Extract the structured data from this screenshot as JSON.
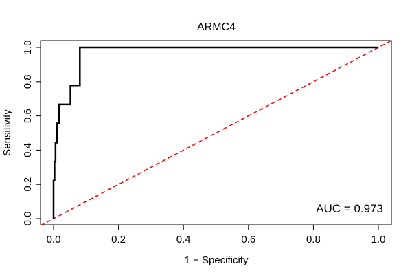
{
  "chart_data": {
    "type": "line",
    "title": "ARMC4",
    "xlabel": "1 − Specificity",
    "ylabel": "Sensitivity",
    "xlim": [
      0,
      1
    ],
    "ylim": [
      0,
      1
    ],
    "x_ticks": [
      "0.0",
      "0.2",
      "0.4",
      "0.6",
      "0.8",
      "1.0"
    ],
    "y_ticks": [
      "0.0",
      "0.2",
      "0.4",
      "0.6",
      "0.8",
      "1.0"
    ],
    "grid": false,
    "annotation": "AUC = 0.973",
    "series": [
      {
        "color": "#000000",
        "x": [
          0,
          0,
          0.003,
          0.003,
          0.006,
          0.006,
          0.011,
          0.011,
          0.017,
          0.017,
          0.052,
          0.052,
          0.081,
          0.081,
          1.0
        ],
        "y": [
          0,
          0.222,
          0.222,
          0.333,
          0.333,
          0.444,
          0.444,
          0.556,
          0.556,
          0.667,
          0.667,
          0.778,
          0.778,
          1.0,
          1.0
        ]
      },
      {
        "color": "#ff0000",
        "style": "dashed",
        "x": [
          0,
          1
        ],
        "y": [
          0,
          1
        ]
      }
    ]
  }
}
